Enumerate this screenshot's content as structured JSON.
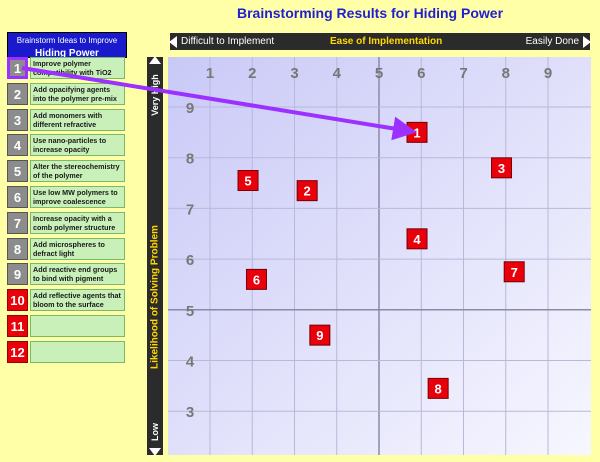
{
  "title": "Brainstorming Results for Hiding Power",
  "panel": {
    "header_line1": "Brainstorm Ideas to Improve",
    "header_line2": "Hiding Power",
    "ideas": [
      {
        "num": "1",
        "text": "Improve polymer compatibility with TiO2",
        "style": "grey",
        "selected": true
      },
      {
        "num": "2",
        "text": "Add opacifying agents into the polymer pre-mix",
        "style": "grey"
      },
      {
        "num": "3",
        "text": "Add monomers with different refractive indices",
        "style": "grey"
      },
      {
        "num": "4",
        "text": "Use nano-particles to increase opacity",
        "style": "grey"
      },
      {
        "num": "5",
        "text": "Alter the stereochemistry of the polymer",
        "style": "grey"
      },
      {
        "num": "6",
        "text": "Use low MW polymers to improve coalescence",
        "style": "grey"
      },
      {
        "num": "7",
        "text": "Increase opacity with a comb polymer structure",
        "style": "grey"
      },
      {
        "num": "8",
        "text": "Add microspheres to defract light",
        "style": "grey"
      },
      {
        "num": "9",
        "text": "Add reactive end groups to bind with pigment",
        "style": "grey"
      },
      {
        "num": "10",
        "text": "Add reflective agents that bloom to the surface",
        "style": "red"
      },
      {
        "num": "11",
        "text": "",
        "style": "red"
      },
      {
        "num": "12",
        "text": "",
        "style": "red"
      }
    ]
  },
  "axes": {
    "x_left": "Difficult to Implement",
    "x_title": "Ease of Implementation",
    "x_right": "Easily Done",
    "y_top": "Very High",
    "y_title": "Likelihood of Solving Problem",
    "y_bottom": "Low"
  },
  "colors": {
    "background": "#ffffa8",
    "marker": "#e8000b",
    "arrow": "#9b30ff",
    "title": "#1f1fd0",
    "axis_bar": "#2b2b2b",
    "axis_title": "#ffd800"
  },
  "chart_data": {
    "type": "scatter",
    "title": "Brainstorming Results for Hiding Power",
    "xlabel": "Ease of Implementation",
    "ylabel": "Likelihood of Solving Problem",
    "xlim": [
      0,
      10
    ],
    "ylim": [
      2,
      10
    ],
    "x_ticks": [
      1,
      2,
      3,
      4,
      5,
      6,
      7,
      8,
      9
    ],
    "y_ticks": [
      3,
      4,
      5,
      6,
      7,
      8,
      9
    ],
    "midlines": {
      "x": 5,
      "y": 5
    },
    "points": [
      {
        "label": "1",
        "x": 5.9,
        "y": 8.5
      },
      {
        "label": "2",
        "x": 3.3,
        "y": 7.35
      },
      {
        "label": "3",
        "x": 7.9,
        "y": 7.8
      },
      {
        "label": "4",
        "x": 5.9,
        "y": 6.4
      },
      {
        "label": "5",
        "x": 1.9,
        "y": 7.55
      },
      {
        "label": "6",
        "x": 2.1,
        "y": 5.6
      },
      {
        "label": "7",
        "x": 8.2,
        "y": 5.75
      },
      {
        "label": "8",
        "x": 6.4,
        "y": 3.45
      },
      {
        "label": "9",
        "x": 3.6,
        "y": 4.5
      }
    ],
    "annotation": {
      "from_item": "1",
      "to_point": "1"
    }
  }
}
